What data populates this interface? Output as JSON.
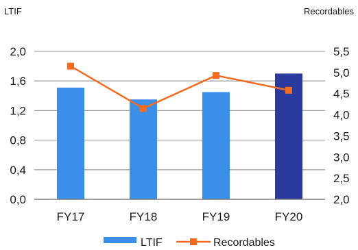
{
  "chart_data": {
    "type": "bar",
    "categories": [
      "FY17",
      "FY18",
      "FY19",
      "FY20"
    ],
    "series": [
      {
        "name": "LTIF",
        "type": "bar",
        "axis": "left",
        "values": [
          1.51,
          1.35,
          1.45,
          1.7
        ],
        "colors": [
          "#3b8fe8",
          "#3b8fe8",
          "#3b8fe8",
          "#2b3a9c"
        ]
      },
      {
        "name": "Recordables",
        "type": "line",
        "axis": "right",
        "values": [
          5.15,
          4.15,
          4.93,
          4.58
        ],
        "color": "#f26b21"
      }
    ],
    "y_left": {
      "label": "LTIF",
      "range": [
        0,
        2.0
      ],
      "ticks": [
        "0,0",
        "0,4",
        "0,8",
        "1,2",
        "1,6",
        "2,0"
      ]
    },
    "y_right": {
      "label": "Recordables",
      "range": [
        2.0,
        5.5
      ],
      "ticks": [
        "2,0",
        "2,5",
        "3,0",
        "3,5",
        "4,0",
        "4,5",
        "5,0",
        "5,5"
      ]
    },
    "grid": true,
    "legend_position": "bottom-center"
  }
}
